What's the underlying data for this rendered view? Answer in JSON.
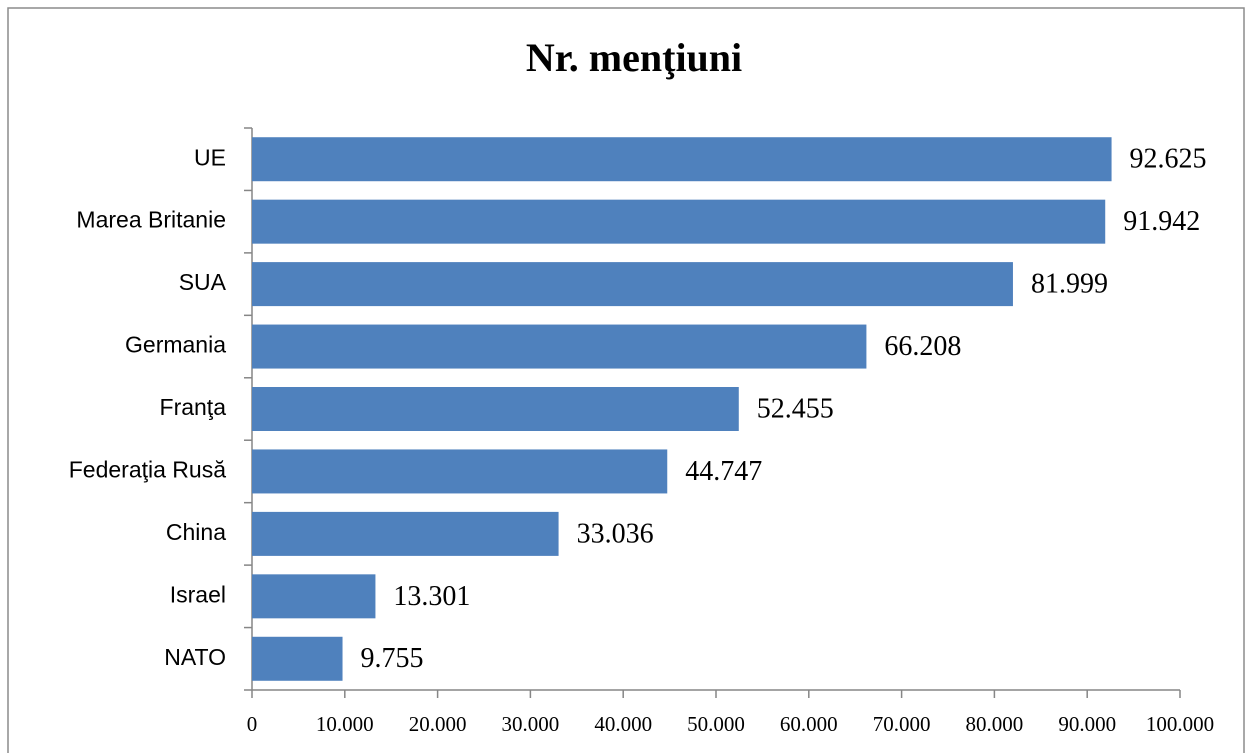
{
  "chart_data": {
    "type": "bar",
    "orientation": "horizontal",
    "title": "Nr. menţiuni",
    "categories": [
      "UE",
      "Marea Britanie",
      "SUA",
      "Germania",
      "Franţa",
      "Federaţia Rusă",
      "China",
      "Israel",
      "NATO"
    ],
    "values": [
      92625,
      91942,
      81999,
      66208,
      52455,
      44747,
      33036,
      13301,
      9755
    ],
    "value_labels": [
      "92.625",
      "91.942",
      "81.999",
      "66.208",
      "52.455",
      "44.747",
      "33.036",
      "13.301",
      "9.755"
    ],
    "color": "#4f81bd",
    "xlim": [
      0,
      100000
    ],
    "xticks": [
      0,
      {
        "value": 10000,
        "label": "10.000"
      },
      {
        "value": 20000,
        "label": "20.000"
      },
      {
        "value": 30000,
        "label": "30.000"
      },
      {
        "value": 40000,
        "label": "40.000"
      },
      {
        "value": 50000,
        "label": "50.000"
      },
      {
        "value": 60000,
        "label": "60.000"
      },
      {
        "value": 70000,
        "label": "70.000"
      },
      {
        "value": 80000,
        "label": "80.000"
      },
      {
        "value": 90000,
        "label": "90.000"
      },
      {
        "value": 100000,
        "label": "100.000"
      }
    ],
    "grid": false
  }
}
